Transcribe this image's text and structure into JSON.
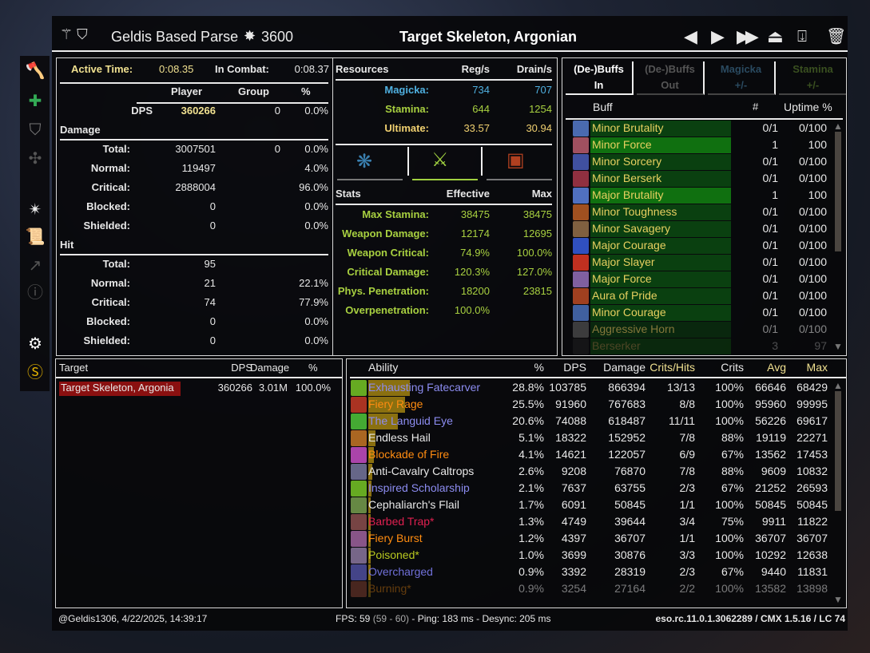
{
  "header": {
    "title": "Geldis Based Parse",
    "cp": "3600",
    "target": "Target Skeleton, Argonian"
  },
  "nav": {
    "prev": "◀",
    "next": "▶",
    "last": "▶▶",
    "screenshot": "camera-icon",
    "save": "save-icon",
    "delete": "trash-icon"
  },
  "sidebar": [
    "axe-icon",
    "heal-icon",
    "shield-icon",
    "puzzle-icon",
    "star-icon",
    "scroll-icon",
    "graph-icon",
    "info-icon",
    "gear-icon",
    "s-badge-icon"
  ],
  "fight": {
    "active_label": "Active Time:",
    "active": "0:08.35",
    "combat_label": "In Combat:",
    "combat": "0:08.37",
    "cols": [
      "Player",
      "Group",
      "%"
    ],
    "dps_label": "DPS",
    "dps": "360266",
    "dps_group": "0",
    "dps_pct": "0.0%",
    "damage_label": "Damage",
    "damage_rows": [
      [
        "Total:",
        "3007501",
        "0",
        "0.0%"
      ],
      [
        "Normal:",
        "119497",
        "",
        "4.0%"
      ],
      [
        "Critical:",
        "2888004",
        "",
        "96.0%"
      ],
      [
        "Blocked:",
        "0",
        "",
        "0.0%"
      ],
      [
        "Shielded:",
        "0",
        "",
        "0.0%"
      ]
    ],
    "hit_label": "Hit",
    "hit_rows": [
      [
        "Total:",
        "95",
        "",
        ""
      ],
      [
        "Normal:",
        "21",
        "",
        "22.1%"
      ],
      [
        "Critical:",
        "74",
        "",
        "77.9%"
      ],
      [
        "Blocked:",
        "0",
        "",
        "0.0%"
      ],
      [
        "Shielded:",
        "0",
        "",
        "0.0%"
      ]
    ]
  },
  "resources": {
    "cols": [
      "Resources",
      "Reg/s",
      "Drain/s"
    ],
    "rows": [
      [
        "Magicka:",
        "734",
        "707",
        "#4fb0e0"
      ],
      [
        "Stamina:",
        "644",
        "1254",
        "#a8d040"
      ],
      [
        "Ultimate:",
        "33.57",
        "30.94",
        "#f0d070"
      ]
    ],
    "tabs": [
      "magicka-icon",
      "stamina-icon",
      "health-icon"
    ],
    "active_tab": 1,
    "stats_cols": [
      "Stats",
      "Effective",
      "Max"
    ],
    "stats": [
      [
        "Max Stamina:",
        "38475",
        "38475"
      ],
      [
        "Weapon Damage:",
        "12174",
        "12695"
      ],
      [
        "Weapon Critical:",
        "74.9%",
        "100.0%"
      ],
      [
        "Critical Damage:",
        "120.3%",
        "127.0%"
      ],
      [
        "Phys. Penetration:",
        "18200",
        "23815"
      ],
      [
        "Overpenetration:",
        "100.0%",
        ""
      ]
    ],
    "stats_color": "#a8d040"
  },
  "buffs": {
    "tabs": [
      [
        "(De-)Buffs",
        "In"
      ],
      [
        "(De-)Buffs",
        "Out"
      ],
      [
        "Magicka",
        "+/-"
      ],
      [
        "Stamina",
        "+/-"
      ]
    ],
    "cols": [
      "Buff",
      "#",
      "Uptime %"
    ],
    "rows": [
      [
        "Minor Brutality",
        "0/1",
        "0/100",
        0
      ],
      [
        "Minor Force",
        "1",
        "100",
        1
      ],
      [
        "Minor Sorcery",
        "0/1",
        "0/100",
        0
      ],
      [
        "Minor Berserk",
        "0/1",
        "0/100",
        0
      ],
      [
        "Major Brutality",
        "1",
        "100",
        1
      ],
      [
        "Minor Toughness",
        "0/1",
        "0/100",
        0
      ],
      [
        "Minor Savagery",
        "0/1",
        "0/100",
        0
      ],
      [
        "Major Courage",
        "0/1",
        "0/100",
        0
      ],
      [
        "Major Slayer",
        "0/1",
        "0/100",
        0
      ],
      [
        "Major Force",
        "0/1",
        "0/100",
        0
      ],
      [
        "Aura of Pride",
        "0/1",
        "0/100",
        0
      ],
      [
        "Minor Courage",
        "0/1",
        "0/100",
        0
      ],
      [
        "Aggressive Horn",
        "0/1",
        "0/100",
        0
      ],
      [
        "Berserker",
        "3",
        "97",
        1
      ]
    ]
  },
  "targets": {
    "cols": [
      "Target",
      "DPS",
      "Damage",
      "%"
    ],
    "rows": [
      [
        "Target Skeleton, Argonia",
        "360266",
        "3.01M",
        "100.0%"
      ]
    ]
  },
  "abilities": {
    "cols": [
      "Ability",
      "%",
      "DPS",
      "Damage",
      "Crits/Hits",
      "Crits",
      "Avg",
      "Max"
    ],
    "rows": [
      [
        "Exhausting Fatecarver",
        "28.8%",
        "103785",
        "866394",
        "13/13",
        "100%",
        "66646",
        "68429",
        "#8c8cf0"
      ],
      [
        "Fiery Rage",
        "25.5%",
        "91960",
        "767683",
        "8/8",
        "100%",
        "95960",
        "99995",
        "#ff8c10"
      ],
      [
        "The Languid Eye",
        "20.6%",
        "74088",
        "618487",
        "11/11",
        "100%",
        "56226",
        "69617",
        "#8c8cf0"
      ],
      [
        "Endless Hail",
        "5.1%",
        "18322",
        "152952",
        "7/8",
        "88%",
        "19119",
        "22271",
        "#e8e8e8"
      ],
      [
        "Blockade of Fire",
        "4.1%",
        "14621",
        "122057",
        "6/9",
        "67%",
        "13562",
        "17453",
        "#ff8c10"
      ],
      [
        "Anti-Cavalry Caltrops",
        "2.6%",
        "9208",
        "76870",
        "7/8",
        "88%",
        "9609",
        "10832",
        "#e8e8e8"
      ],
      [
        "Inspired Scholarship",
        "2.1%",
        "7637",
        "63755",
        "2/3",
        "67%",
        "21252",
        "26593",
        "#8c8cf0"
      ],
      [
        "Cephaliarch's Flail",
        "1.7%",
        "6091",
        "50845",
        "1/1",
        "100%",
        "50845",
        "50845",
        "#e8e8e8"
      ],
      [
        "Barbed Trap*",
        "1.3%",
        "4749",
        "39644",
        "3/4",
        "75%",
        "9911",
        "11822",
        "#e02050"
      ],
      [
        "Fiery Burst",
        "1.2%",
        "4397",
        "36707",
        "1/1",
        "100%",
        "36707",
        "36707",
        "#ff8c10"
      ],
      [
        "Poisoned*",
        "1.0%",
        "3699",
        "30876",
        "3/3",
        "100%",
        "10292",
        "12638",
        "#b8c820"
      ],
      [
        "Overcharged",
        "0.9%",
        "3392",
        "28319",
        "2/3",
        "67%",
        "9440",
        "11831",
        "#7070d8"
      ],
      [
        "Burning*",
        "0.9%",
        "3254",
        "27164",
        "2/2",
        "100%",
        "13582",
        "13898",
        "#c07010"
      ]
    ]
  },
  "footer": {
    "user": "@Geldis1306, 4/22/2025, 14:39:17",
    "fps": "FPS: 59",
    "fps_range": "(59 - 60)",
    "net": "- Ping: 183 ms - Desync: 205 ms",
    "version": "eso.rc.11.0.1.3062289 / CMX 1.5.16 / LC 74"
  }
}
